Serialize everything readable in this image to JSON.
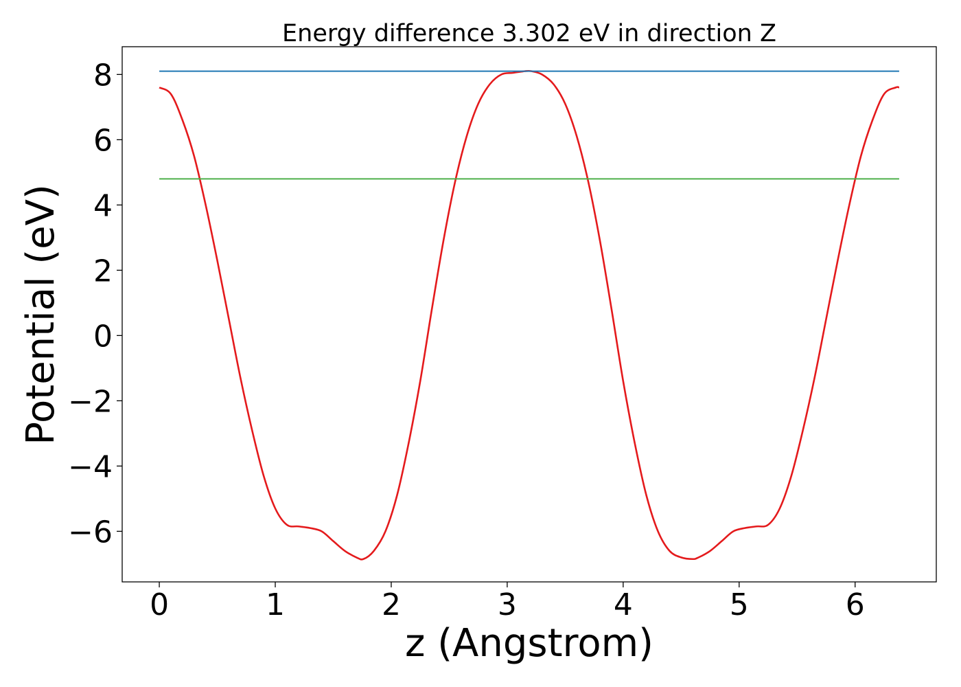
{
  "chart_data": {
    "type": "line",
    "title": "Energy difference 3.302 eV in direction Z",
    "xlabel": "z (Angstrom)",
    "ylabel": "Potential (eV)",
    "xlim": [
      -0.32,
      6.7
    ],
    "ylim": [
      -7.55,
      8.85
    ],
    "x_ticks": [
      0,
      1,
      2,
      3,
      4,
      5,
      6
    ],
    "y_ticks": [
      8,
      6,
      4,
      2,
      0,
      -2,
      -4,
      -6
    ],
    "x_tick_labels": [
      "0",
      "1",
      "2",
      "3",
      "4",
      "5",
      "6"
    ],
    "y_tick_labels": [
      "8",
      "6",
      "4",
      "2",
      "0",
      "−2",
      "−4",
      "−6"
    ],
    "grid": false,
    "legend": "none",
    "series": [
      {
        "role": "potential",
        "color": "#e41a1c",
        "x": [
          0.0,
          0.1,
          0.2,
          0.3,
          0.4,
          0.5,
          0.6,
          0.7,
          0.8,
          0.9,
          1.0,
          1.1,
          1.2,
          1.3,
          1.4,
          1.5,
          1.6,
          1.7,
          1.76,
          1.85,
          1.95,
          2.05,
          2.15,
          2.25,
          2.35,
          2.45,
          2.55,
          2.65,
          2.75,
          2.85,
          2.95,
          3.05,
          3.15,
          3.21,
          3.3,
          3.4,
          3.5,
          3.6,
          3.7,
          3.8,
          3.9,
          4.0,
          4.1,
          4.2,
          4.3,
          4.4,
          4.5,
          4.6,
          4.65,
          4.75,
          4.85,
          4.95,
          5.05,
          5.15,
          5.25,
          5.35,
          5.45,
          5.55,
          5.65,
          5.75,
          5.85,
          5.95,
          6.05,
          6.15,
          6.25,
          6.35,
          6.38
        ],
        "y": [
          7.6,
          7.4,
          6.6,
          5.5,
          4.0,
          2.3,
          0.5,
          -1.3,
          -2.9,
          -4.3,
          -5.3,
          -5.8,
          -5.85,
          -5.9,
          -6.0,
          -6.3,
          -6.6,
          -6.8,
          -6.85,
          -6.6,
          -6.0,
          -4.9,
          -3.3,
          -1.4,
          0.8,
          2.9,
          4.7,
          6.1,
          7.1,
          7.7,
          8.0,
          8.05,
          8.1,
          8.1,
          8.0,
          7.7,
          7.1,
          6.1,
          4.7,
          2.9,
          0.8,
          -1.4,
          -3.3,
          -4.9,
          -6.0,
          -6.6,
          -6.8,
          -6.85,
          -6.8,
          -6.6,
          -6.3,
          -6.0,
          -5.9,
          -5.85,
          -5.8,
          -5.3,
          -4.3,
          -2.9,
          -1.3,
          0.5,
          2.3,
          4.0,
          5.5,
          6.6,
          7.4,
          7.6,
          7.6
        ]
      },
      {
        "role": "upper-level",
        "color": "#1f77b4",
        "x": [
          0.0,
          6.38
        ],
        "y": [
          8.1,
          8.1
        ]
      },
      {
        "role": "lower-level",
        "color": "#4daf4a",
        "x": [
          0.0,
          6.38
        ],
        "y": [
          4.8,
          4.8
        ]
      }
    ]
  }
}
